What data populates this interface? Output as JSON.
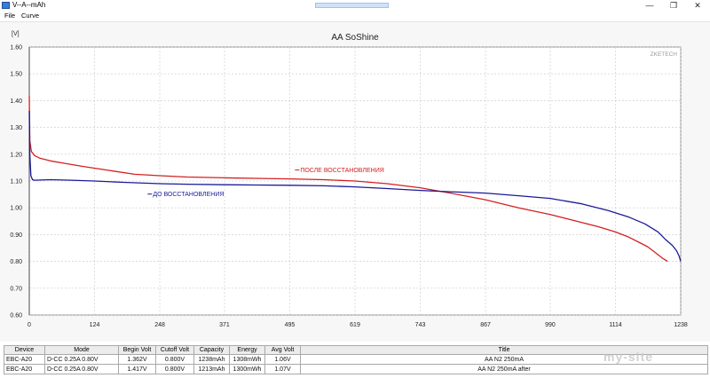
{
  "window": {
    "title": "V--A--mAh",
    "min_symbol": "—",
    "max_symbol": "❐",
    "close_symbol": "✕"
  },
  "menu": {
    "items": [
      "File",
      "Curve"
    ]
  },
  "chart_data": {
    "type": "line",
    "title": "AA SoShine",
    "ylabel": "[V]",
    "xlabel": "",
    "watermark": "ZKETECH",
    "xlim": [
      0,
      1238
    ],
    "ylim": [
      0.6,
      1.6
    ],
    "x_ticks": [
      0,
      124,
      248,
      371,
      495,
      619,
      743,
      867,
      990,
      1114,
      1238
    ],
    "y_ticks": [
      "0.60",
      "0.70",
      "0.80",
      "0.90",
      "1.00",
      "1.10",
      "1.20",
      "1.30",
      "1.40",
      "1.50",
      "1.60"
    ],
    "grid": true,
    "series": [
      {
        "name": "ПОСЛЕ ВОССТАНОВЛЕНИЯ",
        "color": "#d42020",
        "x": [
          0,
          1,
          4,
          10,
          20,
          40,
          70,
          100,
          150,
          200,
          248,
          300,
          371,
          430,
          495,
          560,
          619,
          680,
          743,
          800,
          867,
          930,
          990,
          1040,
          1080,
          1114,
          1140,
          1160,
          1175,
          1185,
          1195,
          1205,
          1213
        ],
        "y": [
          1.417,
          1.25,
          1.21,
          1.195,
          1.185,
          1.175,
          1.165,
          1.155,
          1.14,
          1.125,
          1.12,
          1.115,
          1.112,
          1.11,
          1.108,
          1.105,
          1.1,
          1.09,
          1.075,
          1.055,
          1.03,
          1.0,
          0.975,
          0.95,
          0.93,
          0.91,
          0.89,
          0.87,
          0.855,
          0.84,
          0.825,
          0.81,
          0.8
        ]
      },
      {
        "name": "ДО ВОССТАНОВЛЕНИЯ",
        "color": "#1a1a9a",
        "x": [
          0,
          1,
          3,
          6,
          10,
          40,
          80,
          124,
          180,
          248,
          300,
          371,
          430,
          495,
          560,
          619,
          680,
          743,
          800,
          867,
          930,
          990,
          1050,
          1100,
          1140,
          1170,
          1195,
          1210,
          1222,
          1230,
          1235,
          1238
        ],
        "y": [
          1.362,
          1.2,
          1.12,
          1.105,
          1.103,
          1.105,
          1.103,
          1.1,
          1.095,
          1.09,
          1.088,
          1.086,
          1.085,
          1.084,
          1.082,
          1.078,
          1.072,
          1.065,
          1.06,
          1.055,
          1.045,
          1.035,
          1.015,
          0.99,
          0.965,
          0.94,
          0.91,
          0.88,
          0.86,
          0.84,
          0.82,
          0.8
        ]
      }
    ],
    "annotations": [
      {
        "text": "ПОСЛЕ ВОССТАНОВЛЕНИЯ",
        "color": "#d42020",
        "x": 515,
        "y": 1.133
      },
      {
        "text": "ДО ВОССТАНОВЛЕНИЯ",
        "color": "#1a1a9a",
        "x": 235,
        "y": 1.043
      }
    ]
  },
  "table": {
    "headers": [
      "Device",
      "Mode",
      "Begin Volt",
      "Cutoff Volt",
      "Capacity",
      "Energy",
      "Avg Volt",
      "Title"
    ],
    "rows": [
      [
        "EBC-A20",
        "D-CC  0.25A  0.80V",
        "1.362V",
        "0.800V",
        "1238mAh",
        "1308mWh",
        "1.06V",
        "AA N2 250mA"
      ],
      [
        "EBC-A20",
        "D-CC  0.25A  0.80V",
        "1.417V",
        "0.800V",
        "1213mAh",
        "1300mWh",
        "1.07V",
        "AA N2 250mA after"
      ]
    ]
  },
  "watermark": "my-site"
}
